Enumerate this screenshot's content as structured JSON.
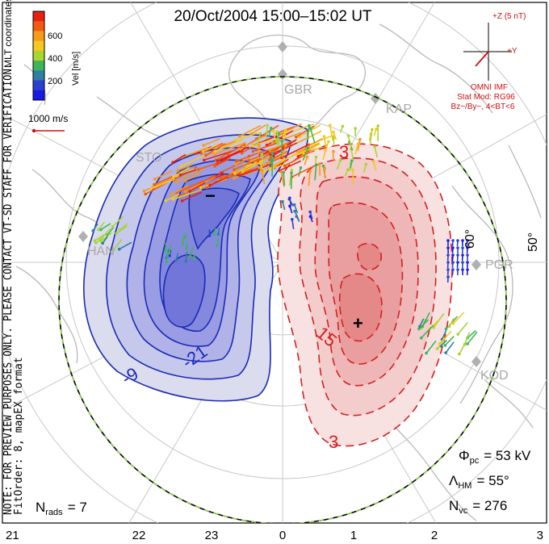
{
  "title": "20/Oct/2004 15:00–15:02 UT",
  "side_note": {
    "line1": "NOTE: FOR PREVIEW PURPOSES ONLY. PLEASE CONTACT VT-SD STAFF FOR VERIFICATION.",
    "line2": "FitOrder: 8, mapEX format"
  },
  "coords_label": "MLT coordinates",
  "colorbar": {
    "label": "Vel [m/s]",
    "ticks": [
      "600",
      "400",
      "200"
    ],
    "colors": [
      "#e8200f",
      "#f25a12",
      "#f79a1a",
      "#f5c81f",
      "#a8d630",
      "#3fb55a",
      "#2f7fa3",
      "#2b3fd0",
      "#1a1ae8"
    ]
  },
  "reference_vector": {
    "label": "1000 m/s",
    "color": "#d01010"
  },
  "stations": [
    {
      "id": "GBR",
      "label": "GBR"
    },
    {
      "id": "KAP",
      "label": "KAP"
    },
    {
      "id": "STO",
      "label": "STO"
    },
    {
      "id": "HAN",
      "label": "HAN"
    },
    {
      "id": "PGR",
      "label": "PGR"
    },
    {
      "id": "KOD",
      "label": "KOD"
    }
  ],
  "imf": {
    "z_label": "+Z (5 nT)",
    "y_label": "+Y",
    "source": "OMNI IMF",
    "model_line1": "Stat Mod: RG96",
    "model_line2": "Bz−/By−, 4<BT<6",
    "color": "#d01010"
  },
  "contours": {
    "negative_labels": [
      "-9",
      "-21"
    ],
    "positive_labels": [
      "3",
      "15",
      "3"
    ],
    "min_marker": "−",
    "max_marker": "+",
    "negative_color": "#1a2bb5",
    "positive_color": "#d42020"
  },
  "latitude_labels": [
    "60°",
    "50°"
  ],
  "mlt_labels": [
    "21",
    "22",
    "23",
    "0",
    "1",
    "2",
    "3"
  ],
  "stats": {
    "phi_pc": {
      "symbol": "Φ",
      "sub": "pc",
      "value": "= 53 kV"
    },
    "lambda_hm": {
      "symbol": "Λ",
      "sub": "HM",
      "value": "= 55°"
    },
    "n_vc": {
      "symbol": "N",
      "sub": "vc",
      "value": "= 276"
    },
    "n_rads": {
      "symbol": "N",
      "sub": "rads",
      "value": "= 7"
    }
  }
}
